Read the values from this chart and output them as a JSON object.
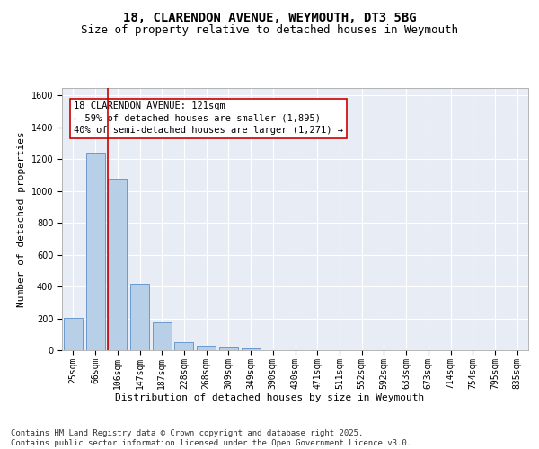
{
  "title_line1": "18, CLARENDON AVENUE, WEYMOUTH, DT3 5BG",
  "title_line2": "Size of property relative to detached houses in Weymouth",
  "xlabel": "Distribution of detached houses by size in Weymouth",
  "ylabel": "Number of detached properties",
  "categories": [
    "25sqm",
    "66sqm",
    "106sqm",
    "147sqm",
    "187sqm",
    "228sqm",
    "268sqm",
    "309sqm",
    "349sqm",
    "390sqm",
    "430sqm",
    "471sqm",
    "511sqm",
    "552sqm",
    "592sqm",
    "633sqm",
    "673sqm",
    "714sqm",
    "754sqm",
    "795sqm",
    "835sqm"
  ],
  "values": [
    205,
    1240,
    1080,
    415,
    175,
    50,
    30,
    20,
    10,
    0,
    0,
    0,
    0,
    0,
    0,
    0,
    0,
    0,
    0,
    0,
    0
  ],
  "bar_color": "#b8cfe8",
  "bar_edge_color": "#5b8fc9",
  "property_line_color": "#cc0000",
  "annotation_text": "18 CLARENDON AVENUE: 121sqm\n← 59% of detached houses are smaller (1,895)\n40% of semi-detached houses are larger (1,271) →",
  "annotation_box_facecolor": "#ffffff",
  "annotation_box_edgecolor": "#cc0000",
  "ylim": [
    0,
    1650
  ],
  "yticks": [
    0,
    200,
    400,
    600,
    800,
    1000,
    1200,
    1400,
    1600
  ],
  "background_color": "#e8ecf5",
  "grid_color": "#ffffff",
  "footnote": "Contains HM Land Registry data © Crown copyright and database right 2025.\nContains public sector information licensed under the Open Government Licence v3.0.",
  "title_fontsize": 10,
  "subtitle_fontsize": 9,
  "axis_label_fontsize": 8,
  "tick_fontsize": 7,
  "annotation_fontsize": 7.5,
  "footnote_fontsize": 6.5
}
